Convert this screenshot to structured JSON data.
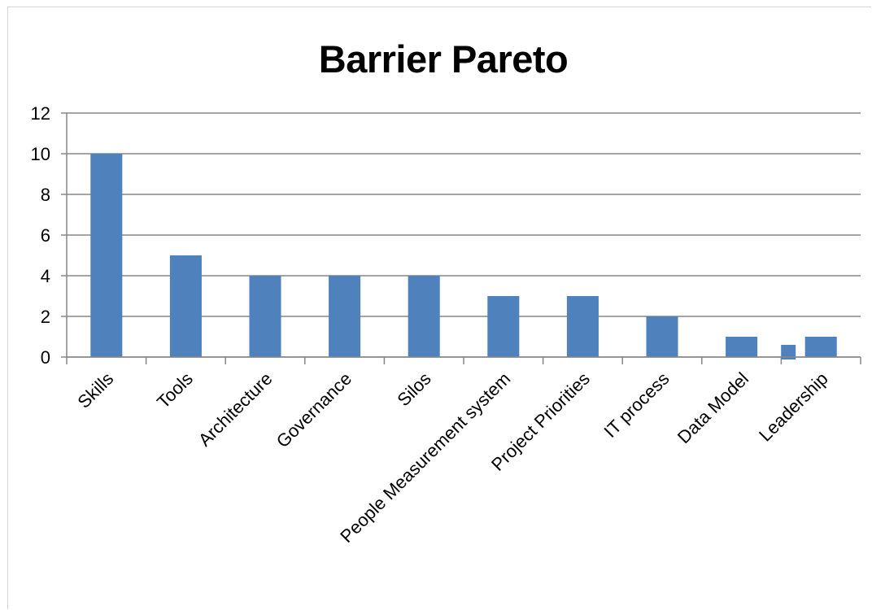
{
  "chart_data": {
    "type": "bar",
    "title": "Barrier Pareto",
    "xlabel": "",
    "ylabel": "",
    "categories": [
      "Skills",
      "Tools",
      "Architecture",
      "Governance",
      "Silos",
      "People Measurement system",
      "Project Priorities",
      "IT process",
      "Data Model",
      "Leadership"
    ],
    "series": [
      {
        "values": [
          10,
          5,
          4,
          4,
          4,
          3,
          3,
          2,
          1,
          1
        ]
      }
    ],
    "extra_bars": [
      {
        "category": "Leadership",
        "value": 0.6
      }
    ],
    "ylim": [
      0,
      12
    ],
    "yticks": [
      0,
      2,
      4,
      6,
      8,
      10,
      12
    ],
    "grid": true,
    "legend": "none",
    "colors": {
      "bar": "#4f81bd",
      "grid": "#878787",
      "axis": "#878787"
    }
  }
}
